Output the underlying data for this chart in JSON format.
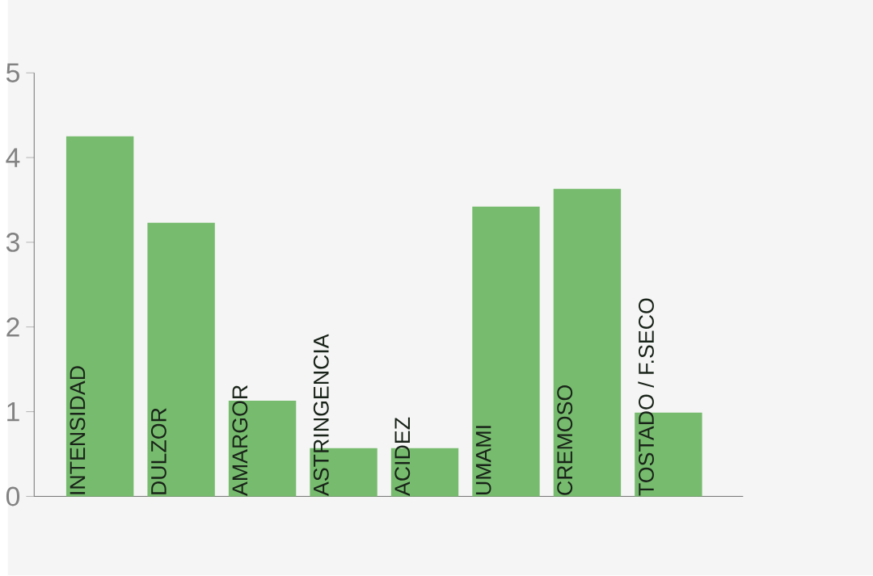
{
  "chart_data": {
    "type": "bar",
    "categories": [
      "INTENSIDAD",
      "DULZOR",
      "AMARGOR",
      "ASTRINGENCIA",
      "ACIDEZ",
      "UMAMI",
      "CREMOSO",
      "TOSTADO / F.SECO"
    ],
    "values": [
      4.25,
      3.23,
      1.13,
      0.57,
      0.57,
      3.42,
      3.63,
      0.99
    ],
    "color": "#77bc6e",
    "ylim": [
      0,
      5
    ],
    "yticks": [
      0,
      1,
      2,
      3,
      4,
      5
    ]
  }
}
